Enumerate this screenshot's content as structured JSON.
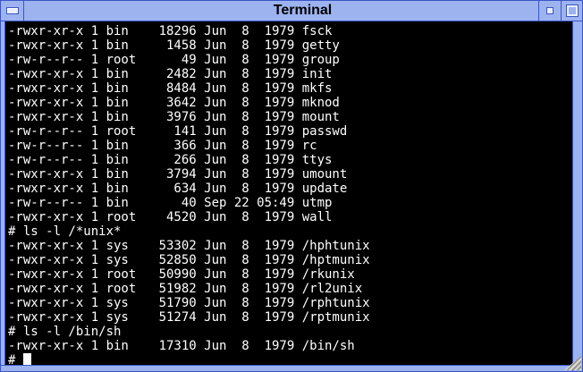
{
  "window": {
    "title": "Terminal"
  },
  "colors": {
    "titlebar": "#9db3f0",
    "border": "#3a55c5",
    "screen_bg": "#000000",
    "screen_fg": "#ffffff"
  },
  "terminal": {
    "output_lines": [
      "-rwxr-xr-x 1 bin    18296 Jun  8  1979 fsck",
      "-rwxr-xr-x 1 bin     1458 Jun  8  1979 getty",
      "-rw-r--r-- 1 root      49 Jun  8  1979 group",
      "-rwxr-xr-x 1 bin     2482 Jun  8  1979 init",
      "-rwxr-xr-x 1 bin     8484 Jun  8  1979 mkfs",
      "-rwxr-xr-x 1 bin     3642 Jun  8  1979 mknod",
      "-rwxr-xr-x 1 bin     3976 Jun  8  1979 mount",
      "-rw-r--r-- 1 root     141 Jun  8  1979 passwd",
      "-rw-r--r-- 1 bin      366 Jun  8  1979 rc",
      "-rw-r--r-- 1 bin      266 Jun  8  1979 ttys",
      "-rwxr-xr-x 1 bin     3794 Jun  8  1979 umount",
      "-rwxr-xr-x 1 bin      634 Jun  8  1979 update",
      "-rw-r--r-- 1 bin       40 Sep 22 05:49 utmp",
      "-rwxr-xr-x 1 root    4520 Jun  8  1979 wall",
      "# ls -l /*unix*",
      "-rwxr-xr-x 1 sys    53302 Jun  8  1979 /hphtunix",
      "-rwxr-xr-x 1 sys    52850 Jun  8  1979 /hptmunix",
      "-rwxr-xr-x 1 root   50990 Jun  8  1979 /rkunix",
      "-rwxr-xr-x 1 root   51982 Jun  8  1979 /rl2unix",
      "-rwxr-xr-x 1 sys    51790 Jun  8  1979 /rphtunix",
      "-rwxr-xr-x 1 sys    51274 Jun  8  1979 /rptmunix",
      "# ls -l /bin/sh",
      "-rwxr-xr-x 1 bin    17310 Jun  8  1979 /bin/sh"
    ],
    "prompt": "# "
  }
}
